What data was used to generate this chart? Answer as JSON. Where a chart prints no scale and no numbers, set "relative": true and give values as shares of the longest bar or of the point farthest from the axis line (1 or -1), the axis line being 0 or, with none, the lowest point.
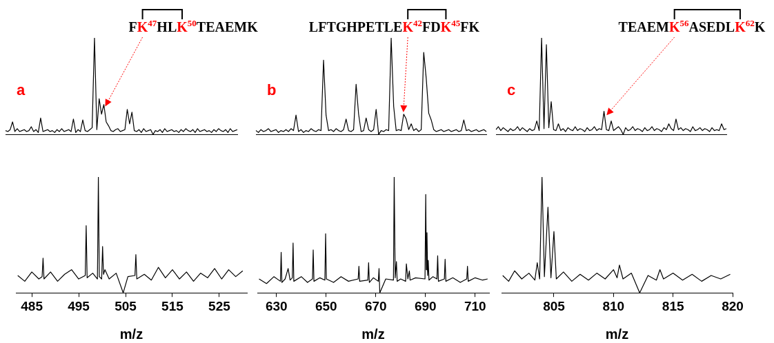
{
  "chart_data": [
    {
      "type": "line",
      "relative": true,
      "color": "#000000",
      "annotations": [
        "a",
        "FK$^{47}$HLK$^{50}$TEAEMK"
      ],
      "categories": [
        null,
        null,
        null,
        null,
        null,
        null,
        null,
        null,
        null,
        null,
        null,
        null,
        null,
        null,
        null,
        null,
        null,
        null,
        null,
        null,
        null,
        null,
        null,
        null,
        null,
        null,
        null,
        null,
        null,
        null,
        null,
        null,
        null,
        null,
        null,
        null,
        null,
        null,
        null,
        null,
        null,
        null,
        null,
        null,
        null,
        null,
        null,
        null,
        null,
        null,
        null,
        null,
        null,
        null,
        null,
        null,
        null,
        null,
        null,
        null,
        null,
        null,
        null,
        null,
        null,
        null,
        null,
        null,
        null,
        null,
        null,
        null,
        null,
        null,
        null,
        null,
        null,
        null,
        null,
        null,
        null,
        null,
        null,
        null,
        null,
        null,
        null,
        null,
        null,
        null,
        null,
        null,
        null,
        null,
        null,
        null,
        null,
        null,
        null,
        null
      ],
      "values": [
        0.04,
        0.03,
        0.05,
        0.13,
        0.03,
        0.06,
        0.03,
        0.04,
        0.05,
        0.03,
        0.04,
        0.08,
        0.03,
        0.05,
        0.02,
        0.17,
        0.03,
        0.04,
        0.05,
        0.03,
        0.04,
        0.02,
        0.05,
        0.03,
        0.06,
        0.03,
        0.04,
        0.05,
        0.03,
        0.16,
        0.02,
        0.05,
        0.03,
        0.15,
        0.04,
        0.03,
        0.05,
        0.07,
        1.0,
        0.05,
        0.37,
        0.21,
        0.31,
        0.13,
        0.09,
        0.04,
        0.03,
        0.05,
        0.06,
        0.03,
        0.04,
        0.05,
        0.26,
        0.11,
        0.23,
        0.04,
        0.03,
        0.05,
        0.02,
        0.06,
        0.03,
        0.04,
        0.05,
        0,
        0.04,
        0.03,
        0.05,
        0.02,
        0.06,
        0.03,
        0.04,
        0.05,
        0.03,
        0.04,
        0.02,
        0.05,
        0.03,
        0.06,
        0.04,
        0.03,
        0.05,
        0.02,
        0.06,
        0.03,
        0.04,
        0.05,
        0.03,
        0.04,
        0.02,
        0.05,
        0.03,
        0.06,
        0.04,
        0.03,
        0.05,
        0.02,
        0.06,
        0.03,
        0.04,
        0.05
      ]
    },
    {
      "type": "line",
      "relative": true,
      "color": "#000000",
      "annotations": [
        "b",
        "LFTGHPETLEK$^{42}$FDK$^{45}$FK"
      ],
      "categories": [
        null,
        null,
        null,
        null,
        null,
        null,
        null,
        null,
        null,
        null,
        null,
        null,
        null,
        null,
        null,
        null,
        null,
        null,
        null,
        null,
        null,
        null,
        null,
        null,
        null,
        null,
        null,
        null,
        null,
        null,
        null,
        null,
        null,
        null,
        null,
        null,
        null,
        null,
        null,
        null,
        null,
        null,
        null,
        null,
        null,
        null,
        null,
        null,
        null,
        null,
        null,
        null,
        null,
        null,
        null,
        null,
        null,
        null,
        null,
        null,
        null,
        null,
        null,
        null,
        null,
        null,
        null,
        null,
        null,
        null,
        null,
        null,
        null,
        null,
        null,
        null,
        null,
        null,
        null,
        null,
        null,
        null,
        null,
        null,
        null,
        null,
        null,
        null,
        null,
        null,
        null,
        null,
        null
      ],
      "values": [
        0.04,
        0.02,
        0.05,
        0.03,
        0.04,
        0.06,
        0.03,
        0.04,
        0.05,
        0.02,
        0.04,
        0.03,
        0.05,
        0.03,
        0.06,
        0.04,
        0.2,
        0.03,
        0.05,
        0.02,
        0.04,
        0.03,
        0.06,
        0.04,
        0.03,
        0.05,
        0.04,
        0.77,
        0.2,
        0.04,
        0.05,
        0.03,
        0.06,
        0.04,
        0.03,
        0.05,
        0.16,
        0.04,
        0.03,
        0.05,
        0.52,
        0.21,
        0.03,
        0.04,
        0.17,
        0.05,
        0.03,
        0.05,
        0.26,
        0,
        0.04,
        0.03,
        0.05,
        0.04,
        1.0,
        0.29,
        0.04,
        0.05,
        0.04,
        0.21,
        0.16,
        0.05,
        0.11,
        0.04,
        0.06,
        0.03,
        0.05,
        0.85,
        0.58,
        0.22,
        0.15,
        0.05,
        0.03,
        0.04,
        0.05,
        0.03,
        0.04,
        0.05,
        0.03,
        0.04,
        0.05,
        0.03,
        0.04,
        0.15,
        0.04,
        0.05,
        0.03,
        0.04,
        0.05,
        0.03,
        0.04,
        0.05,
        0.03
      ]
    },
    {
      "type": "line",
      "relative": true,
      "color": "#000000",
      "annotations": [
        "c",
        "TEAEMK$^{56}$ASEDLK$^{62}$K"
      ],
      "categories": [
        null,
        null,
        null,
        null,
        null,
        null,
        null,
        null,
        null,
        null,
        null,
        null,
        null,
        null,
        null,
        null,
        null,
        null,
        null,
        null,
        null,
        null,
        null,
        null,
        null,
        null,
        null,
        null,
        null,
        null,
        null,
        null,
        null,
        null,
        null,
        null,
        null,
        null,
        null,
        null,
        null,
        null,
        null,
        null,
        null,
        null,
        null,
        null,
        null,
        null,
        null,
        null,
        null,
        null,
        null,
        null,
        null,
        null,
        null,
        null,
        null,
        null,
        null,
        null,
        null,
        null,
        null,
        null,
        null,
        null,
        null,
        null,
        null,
        null,
        null,
        null,
        null,
        null,
        null,
        null,
        null,
        null,
        null,
        null,
        null,
        null,
        null,
        null,
        null,
        null,
        null,
        null,
        null,
        null,
        null,
        null,
        null
      ],
      "values": [
        0.05,
        0.08,
        0.04,
        0.07,
        0.05,
        0.03,
        0.06,
        0.04,
        0.05,
        0.08,
        0.04,
        0.07,
        0.05,
        0.03,
        0.06,
        0.04,
        0.05,
        0.14,
        0.04,
        1.0,
        0.06,
        0.93,
        0.07,
        0.34,
        0.05,
        0.04,
        0.11,
        0.04,
        0.06,
        0.03,
        0.07,
        0.05,
        0.04,
        0.08,
        0.04,
        0.06,
        0.05,
        0.03,
        0.07,
        0.04,
        0.05,
        0.08,
        0.04,
        0.06,
        0.05,
        0.24,
        0.05,
        0.04,
        0.14,
        0.04,
        0.06,
        0.08,
        0.05,
        0,
        0.07,
        0.04,
        0.05,
        0.08,
        0.04,
        0.06,
        0.05,
        0.03,
        0.07,
        0.04,
        0.05,
        0.08,
        0.04,
        0.06,
        0.05,
        0.03,
        0.07,
        0.05,
        0.11,
        0.06,
        0.04,
        0.16,
        0.05,
        0.07,
        0.04,
        0.06,
        0.05,
        0.03,
        0.08,
        0.04,
        0.05,
        0.07,
        0.04,
        0.06,
        0.05,
        0.03,
        0.07,
        0.04,
        0.05,
        0.04,
        0.11,
        0.05,
        0.06
      ]
    },
    {
      "type": "line",
      "relative": true,
      "xlim": [
        481.6,
        530.9
      ],
      "xticks": [
        485,
        495,
        505,
        515,
        525
      ],
      "xlabel": "m/z",
      "color": "#000000",
      "x": [
        482,
        483.5,
        485,
        486.5,
        487.2,
        487.4,
        487.6,
        489,
        490.5,
        492,
        493.5,
        495,
        496.4,
        496.6,
        496.8,
        498,
        499.0,
        499.2,
        499.4,
        499.9,
        500.1,
        500.3,
        500.6,
        501.5,
        503,
        504.5,
        505.5,
        507.0,
        507.2,
        507.4,
        509,
        510.5,
        512,
        513.5,
        515,
        516.5,
        518,
        519.5,
        521,
        522.5,
        524,
        525.5,
        527,
        528.5,
        530
      ],
      "values": [
        0.15,
        0.1,
        0.18,
        0.12,
        0.14,
        0.3,
        0.12,
        0.18,
        0.1,
        0.16,
        0.2,
        0.12,
        0.15,
        0.58,
        0.13,
        0.17,
        0.12,
        1.0,
        0.14,
        0.12,
        0.4,
        0.16,
        0.2,
        0.12,
        0.17,
        0,
        0.14,
        0.15,
        0.33,
        0.12,
        0.16,
        0.11,
        0.22,
        0.13,
        0.2,
        0.12,
        0.18,
        0.1,
        0.17,
        0.13,
        0.21,
        0.12,
        0.2,
        0.14,
        0.19
      ]
    },
    {
      "type": "line",
      "relative": true,
      "xlim": [
        622.3,
        715.6
      ],
      "xticks": [
        630,
        650,
        670,
        690,
        710
      ],
      "xlabel": "m/z",
      "color": "#000000",
      "x": [
        623,
        626,
        629,
        631.6,
        631.9,
        632.2,
        633.5,
        634.7,
        635.5,
        636.4,
        636.7,
        637,
        640,
        642.5,
        644.5,
        644.8,
        645.1,
        647.5,
        649.5,
        649.8,
        650.1,
        653,
        656,
        659,
        662.9,
        663.2,
        663.5,
        666.8,
        667.1,
        667.4,
        669,
        671.0,
        671.3,
        671.6,
        674,
        677.1,
        677.4,
        677.8,
        678.3,
        678.6,
        680,
        682.0,
        682.3,
        682.9,
        683.5,
        683.8,
        686,
        689.8,
        690.1,
        690.35,
        690.6,
        690.85,
        691.1,
        691.4,
        693,
        694.6,
        694.9,
        695.2,
        697.6,
        697.9,
        698.2,
        701,
        704,
        706.6,
        706.9,
        707.2,
        710,
        713,
        715
      ],
      "values": [
        0.12,
        0.08,
        0.14,
        0.1,
        0.35,
        0.09,
        0.12,
        0.21,
        0.11,
        0.13,
        0.43,
        0.1,
        0.14,
        0.09,
        0.12,
        0.37,
        0.1,
        0.13,
        0.11,
        0.51,
        0.12,
        0.09,
        0.14,
        0.1,
        0.12,
        0.23,
        0.1,
        0.11,
        0.26,
        0.09,
        0.13,
        0.1,
        0.21,
        0,
        0.12,
        0.11,
        1.0,
        0.13,
        0.27,
        0.1,
        0.12,
        0.1,
        0.25,
        0.12,
        0.19,
        0.11,
        0.13,
        0.12,
        0.85,
        0.2,
        0.52,
        0.15,
        0.28,
        0.11,
        0.14,
        0.12,
        0.32,
        0.1,
        0.12,
        0.29,
        0.1,
        0.13,
        0.09,
        0.12,
        0.23,
        0.1,
        0.13,
        0.11,
        0.12
      ]
    },
    {
      "type": "line",
      "relative": true,
      "xlim": [
        800.6,
        820
      ],
      "xticks": [
        805,
        810,
        815,
        820
      ],
      "xlabel": "m/z",
      "color": "#000000",
      "x": [
        800.7,
        801.2,
        801.7,
        802.3,
        802.9,
        803.4,
        803.6,
        803.8,
        804.0,
        804.2,
        804.5,
        804.75,
        805.0,
        805.2,
        805.8,
        806.5,
        807.2,
        807.9,
        808.6,
        809.3,
        810.0,
        810.3,
        810.5,
        810.8,
        811.5,
        812.2,
        812.9,
        813.6,
        813.9,
        814.2,
        815,
        815.8,
        816.6,
        817.4,
        818.2,
        819,
        819.8
      ],
      "values": [
        0.15,
        0.1,
        0.19,
        0.12,
        0.17,
        0.11,
        0.26,
        0.12,
        1.0,
        0.14,
        0.74,
        0.13,
        0.53,
        0.12,
        0.18,
        0.1,
        0.16,
        0.11,
        0.17,
        0.12,
        0.2,
        0.13,
        0.24,
        0.12,
        0.17,
        0,
        0.15,
        0.11,
        0.2,
        0.12,
        0.17,
        0.11,
        0.16,
        0.1,
        0.15,
        0.12,
        0.16
      ]
    }
  ]
}
